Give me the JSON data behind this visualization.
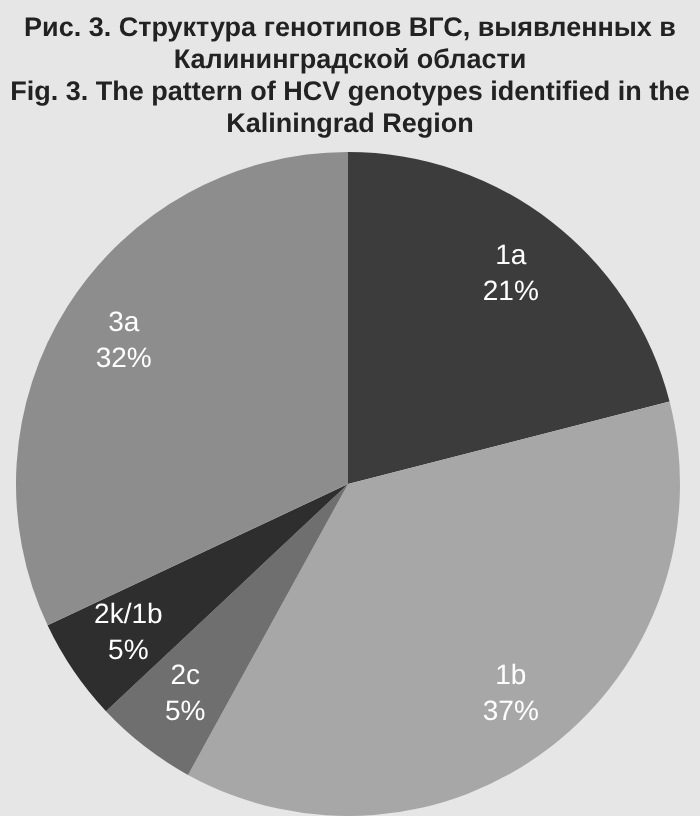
{
  "chart_data": {
    "type": "pie",
    "title": "Рис. 3. Структура генотипов ВГС, выявленных в Калининградской области",
    "subtitle": "Fig. 3. The pattern of HCV genotypes identified in the Kaliningrad Region",
    "categories": [
      "1a",
      "1b",
      "2c",
      "2k/1b",
      "3a"
    ],
    "values": [
      21,
      37,
      5,
      5,
      32
    ],
    "colors": [
      "#3c3c3c",
      "#a7a7a7",
      "#6f6f6f",
      "#2e2e2e",
      "#8d8d8d"
    ],
    "value_labels": [
      "21%",
      "37%",
      "5%",
      "5%",
      "32%"
    ],
    "legend": false
  }
}
